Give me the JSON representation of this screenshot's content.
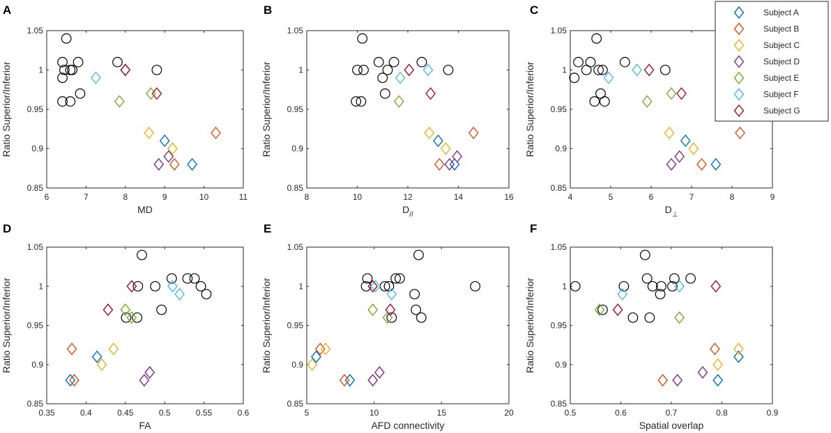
{
  "legend": {
    "entries": [
      {
        "name": "Subject A",
        "color": "#0072BD"
      },
      {
        "name": "Subject B",
        "color": "#D95319"
      },
      {
        "name": "Subject C",
        "color": "#EDB120"
      },
      {
        "name": "Subject D",
        "color": "#7E2F8E"
      },
      {
        "name": "Subject E",
        "color": "#77AC30"
      },
      {
        "name": "Subject F",
        "color": "#4DBEEE"
      },
      {
        "name": "Subject G",
        "color": "#A2142F"
      }
    ]
  },
  "chart_data": [
    {
      "panel": "A",
      "type": "scatter",
      "xlabel": "MD",
      "ylabel": "Ratio Superior/Inferior",
      "xlim": [
        6,
        11
      ],
      "ylim": [
        0.85,
        1.05
      ],
      "xticks": [
        "6",
        "7",
        "8",
        "9",
        "10",
        "11"
      ],
      "yticks": [
        "0.85",
        "0.9",
        "0.95",
        "1",
        "1.05"
      ],
      "circles": [
        [
          6.4,
          1.01
        ],
        [
          6.5,
          1.04
        ],
        [
          6.45,
          1.0
        ],
        [
          6.6,
          1.0
        ],
        [
          6.65,
          1.0
        ],
        [
          6.8,
          1.01
        ],
        [
          6.4,
          0.99
        ],
        [
          6.4,
          0.96
        ],
        [
          6.6,
          0.96
        ],
        [
          6.85,
          0.97
        ],
        [
          7.8,
          1.01
        ],
        [
          8.8,
          1.0
        ]
      ],
      "subjects": [
        {
          "name": "Subject A",
          "points": [
            [
              9.0,
              0.91
            ],
            [
              9.7,
              0.88
            ]
          ]
        },
        {
          "name": "Subject B",
          "points": [
            [
              10.3,
              0.92
            ],
            [
              9.25,
              0.88
            ]
          ]
        },
        {
          "name": "Subject C",
          "points": [
            [
              8.6,
              0.92
            ],
            [
              9.2,
              0.9
            ]
          ]
        },
        {
          "name": "Subject D",
          "points": [
            [
              8.0,
              1.0
            ],
            [
              9.1,
              0.89
            ],
            [
              8.85,
              0.88
            ]
          ]
        },
        {
          "name": "Subject E",
          "points": [
            [
              7.85,
              0.96
            ],
            [
              8.65,
              0.97
            ]
          ]
        },
        {
          "name": "Subject F",
          "points": [
            [
              7.25,
              0.99
            ]
          ]
        },
        {
          "name": "Subject G",
          "points": [
            [
              8.0,
              1.0
            ],
            [
              8.8,
              0.97
            ]
          ]
        }
      ]
    },
    {
      "panel": "B",
      "type": "scatter",
      "xlabel": "D",
      "xlabel_sub": "//",
      "ylabel": "Ratio Superior/Inferior",
      "xlim": [
        8,
        16
      ],
      "ylim": [
        0.85,
        1.05
      ],
      "xticks": [
        "8",
        "10",
        "12",
        "14",
        "16"
      ],
      "yticks": [
        "0.85",
        "0.9",
        "0.95",
        "1",
        "1.05"
      ],
      "circles": [
        [
          10.2,
          1.04
        ],
        [
          10.0,
          1.0
        ],
        [
          10.25,
          1.0
        ],
        [
          10.85,
          1.01
        ],
        [
          11.45,
          1.01
        ],
        [
          11.2,
          1.0
        ],
        [
          11.0,
          0.99
        ],
        [
          11.1,
          0.97
        ],
        [
          9.95,
          0.96
        ],
        [
          10.15,
          0.96
        ],
        [
          12.55,
          1.01
        ],
        [
          13.6,
          1.0
        ]
      ],
      "subjects": [
        {
          "name": "Subject A",
          "points": [
            [
              13.2,
              0.91
            ],
            [
              13.85,
              0.88
            ]
          ]
        },
        {
          "name": "Subject B",
          "points": [
            [
              14.6,
              0.92
            ],
            [
              13.25,
              0.88
            ]
          ]
        },
        {
          "name": "Subject C",
          "points": [
            [
              12.85,
              0.92
            ],
            [
              13.5,
              0.9
            ]
          ]
        },
        {
          "name": "Subject D",
          "points": [
            [
              13.95,
              0.89
            ],
            [
              13.65,
              0.88
            ]
          ]
        },
        {
          "name": "Subject E",
          "points": [
            [
              11.65,
              0.96
            ]
          ]
        },
        {
          "name": "Subject F",
          "points": [
            [
              11.7,
              0.99
            ],
            [
              12.8,
              1.0
            ]
          ]
        },
        {
          "name": "Subject G",
          "points": [
            [
              12.05,
              1.0
            ],
            [
              12.9,
              0.97
            ]
          ]
        }
      ]
    },
    {
      "panel": "C",
      "type": "scatter",
      "xlabel": "D",
      "xlabel_sub": "⊥",
      "ylabel": "Ratio Superior/Inferior",
      "xlim": [
        4,
        9
      ],
      "ylim": [
        0.85,
        1.05
      ],
      "xticks": [
        "4",
        "5",
        "6",
        "7",
        "8",
        "9"
      ],
      "yticks": [
        "0.85",
        "0.9",
        "0.95",
        "1",
        "1.05"
      ],
      "circles": [
        [
          4.65,
          1.04
        ],
        [
          4.2,
          1.01
        ],
        [
          4.4,
          1.0
        ],
        [
          4.5,
          1.01
        ],
        [
          4.7,
          1.0
        ],
        [
          4.8,
          1.0
        ],
        [
          4.1,
          0.99
        ],
        [
          4.75,
          0.97
        ],
        [
          4.6,
          0.96
        ],
        [
          4.85,
          0.96
        ],
        [
          5.35,
          1.01
        ],
        [
          6.35,
          1.0
        ]
      ],
      "subjects": [
        {
          "name": "Subject A",
          "points": [
            [
              6.85,
              0.91
            ],
            [
              7.6,
              0.88
            ]
          ]
        },
        {
          "name": "Subject B",
          "points": [
            [
              8.2,
              0.92
            ],
            [
              7.25,
              0.88
            ]
          ]
        },
        {
          "name": "Subject C",
          "points": [
            [
              6.45,
              0.92
            ],
            [
              7.05,
              0.9
            ]
          ]
        },
        {
          "name": "Subject D",
          "points": [
            [
              6.7,
              0.89
            ],
            [
              6.5,
              0.88
            ]
          ]
        },
        {
          "name": "Subject E",
          "points": [
            [
              5.9,
              0.96
            ],
            [
              6.5,
              0.97
            ]
          ]
        },
        {
          "name": "Subject F",
          "points": [
            [
              4.95,
              0.99
            ],
            [
              5.65,
              1.0
            ]
          ]
        },
        {
          "name": "Subject G",
          "points": [
            [
              5.95,
              1.0
            ],
            [
              6.75,
              0.97
            ]
          ]
        }
      ]
    },
    {
      "panel": "D",
      "type": "scatter",
      "xlabel": "FA",
      "ylabel": "Ratio Superior/Inferior",
      "xlim": [
        0.35,
        0.6
      ],
      "ylim": [
        0.85,
        1.05
      ],
      "xticks": [
        "0.35",
        "0.4",
        "0.45",
        "0.5",
        "0.55",
        "0.6"
      ],
      "yticks": [
        "0.85",
        "0.9",
        "0.95",
        "1",
        "1.05"
      ],
      "circles": [
        [
          0.471,
          1.04
        ],
        [
          0.466,
          1.0
        ],
        [
          0.488,
          1.0
        ],
        [
          0.509,
          1.01
        ],
        [
          0.529,
          1.01
        ],
        [
          0.538,
          1.01
        ],
        [
          0.546,
          1.0
        ],
        [
          0.553,
          0.99
        ],
        [
          0.496,
          0.97
        ],
        [
          0.451,
          0.96
        ],
        [
          0.465,
          0.96
        ]
      ],
      "subjects": [
        {
          "name": "Subject A",
          "points": [
            [
              0.414,
              0.91
            ],
            [
              0.38,
              0.88
            ]
          ]
        },
        {
          "name": "Subject B",
          "points": [
            [
              0.382,
              0.92
            ],
            [
              0.385,
              0.88
            ]
          ]
        },
        {
          "name": "Subject C",
          "points": [
            [
              0.435,
              0.92
            ],
            [
              0.42,
              0.9
            ]
          ]
        },
        {
          "name": "Subject D",
          "points": [
            [
              0.481,
              0.89
            ],
            [
              0.474,
              0.88
            ]
          ]
        },
        {
          "name": "Subject E",
          "points": [
            [
              0.45,
              0.97
            ],
            [
              0.458,
              0.96
            ]
          ]
        },
        {
          "name": "Subject F",
          "points": [
            [
              0.51,
              1.0
            ],
            [
              0.519,
              0.99
            ]
          ]
        },
        {
          "name": "Subject G",
          "points": [
            [
              0.428,
              0.97
            ],
            [
              0.458,
              1.0
            ]
          ]
        }
      ]
    },
    {
      "panel": "E",
      "type": "scatter",
      "xlabel": "AFD connectivity",
      "ylabel": "Ratio Superior/Inferior",
      "xlim": [
        5,
        20
      ],
      "ylim": [
        0.85,
        1.05
      ],
      "xticks": [
        "5",
        "10",
        "15",
        "20"
      ],
      "yticks": [
        "0.85",
        "0.9",
        "0.95",
        "1",
        "1.05"
      ],
      "circles": [
        [
          13.3,
          1.04
        ],
        [
          9.5,
          1.01
        ],
        [
          9.4,
          1.0
        ],
        [
          10.8,
          1.0
        ],
        [
          11.1,
          1.0
        ],
        [
          11.6,
          1.01
        ],
        [
          11.9,
          1.01
        ],
        [
          13.0,
          0.99
        ],
        [
          13.1,
          0.97
        ],
        [
          13.5,
          0.96
        ],
        [
          11.3,
          0.96
        ],
        [
          17.5,
          1.0
        ]
      ],
      "subjects": [
        {
          "name": "Subject A",
          "points": [
            [
              5.7,
              0.91
            ],
            [
              8.2,
              0.88
            ]
          ]
        },
        {
          "name": "Subject B",
          "points": [
            [
              6.0,
              0.92
            ],
            [
              7.8,
              0.88
            ]
          ]
        },
        {
          "name": "Subject C",
          "points": [
            [
              6.4,
              0.92
            ],
            [
              5.4,
              0.9
            ]
          ]
        },
        {
          "name": "Subject D",
          "points": [
            [
              10.4,
              0.89
            ],
            [
              9.9,
              0.88
            ]
          ]
        },
        {
          "name": "Subject E",
          "points": [
            [
              9.9,
              0.97
            ],
            [
              11.0,
              0.96
            ]
          ]
        },
        {
          "name": "Subject F",
          "points": [
            [
              10.1,
              1.0
            ],
            [
              11.3,
              0.99
            ]
          ]
        },
        {
          "name": "Subject G",
          "points": [
            [
              9.9,
              1.0
            ],
            [
              11.2,
              0.97
            ]
          ]
        }
      ]
    },
    {
      "panel": "F",
      "type": "scatter",
      "xlabel": "Spatial overlap",
      "ylabel": "Ratio Superior/Inferior",
      "xlim": [
        0.5,
        0.9
      ],
      "ylim": [
        0.85,
        1.05
      ],
      "xticks": [
        "0.5",
        "0.6",
        "0.7",
        "0.8",
        "0.9"
      ],
      "yticks": [
        "0.85",
        "0.9",
        "0.95",
        "1",
        "1.05"
      ],
      "circles": [
        [
          0.648,
          1.04
        ],
        [
          0.652,
          1.01
        ],
        [
          0.706,
          1.01
        ],
        [
          0.738,
          1.01
        ],
        [
          0.51,
          1.0
        ],
        [
          0.606,
          1.0
        ],
        [
          0.663,
          1.0
        ],
        [
          0.68,
          1.0
        ],
        [
          0.702,
          1.0
        ],
        [
          0.678,
          0.99
        ],
        [
          0.564,
          0.97
        ],
        [
          0.624,
          0.96
        ],
        [
          0.657,
          0.96
        ]
      ],
      "subjects": [
        {
          "name": "Subject A",
          "points": [
            [
              0.833,
              0.91
            ],
            [
              0.792,
              0.88
            ]
          ]
        },
        {
          "name": "Subject B",
          "points": [
            [
              0.786,
              0.92
            ],
            [
              0.683,
              0.88
            ]
          ]
        },
        {
          "name": "Subject C",
          "points": [
            [
              0.833,
              0.92
            ],
            [
              0.792,
              0.9
            ]
          ]
        },
        {
          "name": "Subject D",
          "points": [
            [
              0.762,
              0.89
            ],
            [
              0.712,
              0.88
            ]
          ]
        },
        {
          "name": "Subject E",
          "points": [
            [
              0.558,
              0.97
            ],
            [
              0.716,
              0.96
            ]
          ]
        },
        {
          "name": "Subject F",
          "points": [
            [
              0.603,
              0.99
            ],
            [
              0.716,
              1.0
            ]
          ]
        },
        {
          "name": "Subject G",
          "points": [
            [
              0.594,
              0.97
            ],
            [
              0.788,
              1.0
            ]
          ]
        }
      ]
    }
  ]
}
